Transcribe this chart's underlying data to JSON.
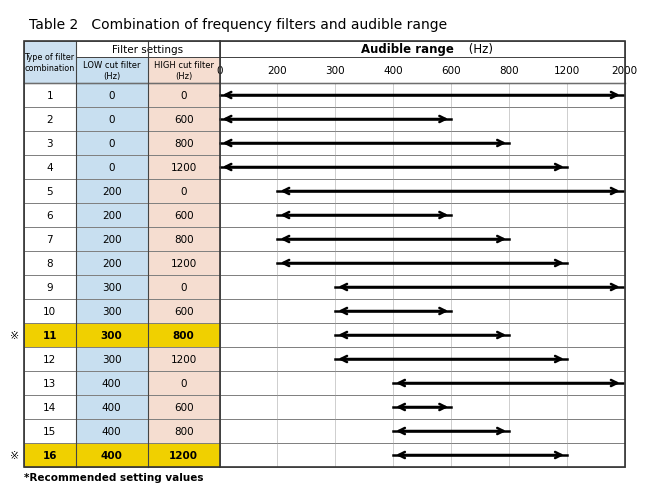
{
  "title": "Table 2   Combination of frequency filters and audible range",
  "rows": [
    {
      "id": 1,
      "low": 0,
      "high": 0,
      "highlighted": false
    },
    {
      "id": 2,
      "low": 0,
      "high": 600,
      "highlighted": false
    },
    {
      "id": 3,
      "low": 0,
      "high": 800,
      "highlighted": false
    },
    {
      "id": 4,
      "low": 0,
      "high": 1200,
      "highlighted": false
    },
    {
      "id": 5,
      "low": 200,
      "high": 0,
      "highlighted": false
    },
    {
      "id": 6,
      "low": 200,
      "high": 600,
      "highlighted": false
    },
    {
      "id": 7,
      "low": 200,
      "high": 800,
      "highlighted": false
    },
    {
      "id": 8,
      "low": 200,
      "high": 1200,
      "highlighted": false
    },
    {
      "id": 9,
      "low": 300,
      "high": 0,
      "highlighted": false
    },
    {
      "id": 10,
      "low": 300,
      "high": 600,
      "highlighted": false
    },
    {
      "id": 11,
      "low": 300,
      "high": 800,
      "highlighted": true
    },
    {
      "id": 12,
      "low": 300,
      "high": 1200,
      "highlighted": false
    },
    {
      "id": 13,
      "low": 400,
      "high": 0,
      "highlighted": false
    },
    {
      "id": 14,
      "low": 400,
      "high": 600,
      "highlighted": false
    },
    {
      "id": 15,
      "low": 400,
      "high": 800,
      "highlighted": false
    },
    {
      "id": 16,
      "low": 400,
      "high": 1200,
      "highlighted": true
    }
  ],
  "freq_ticks": [
    0,
    200,
    300,
    400,
    600,
    800,
    1200,
    2000
  ],
  "freq_labels": [
    "0",
    "200",
    "300",
    "400",
    "600",
    "800",
    "1200",
    "2000"
  ],
  "col_id_label": "Type of filter\ncombination",
  "col_low_label": "LOW cut filter\n(Hz)",
  "col_high_label": "HIGH cut filter\n(Hz)",
  "filter_settings_label": "Filter settings",
  "audible_range_label": "Audible range",
  "audible_range_unit": " (Hz)",
  "recommended_label": "*Recommended setting values",
  "color_header_bg": "#cce0f0",
  "color_low_bg": "#c8dff0",
  "color_high_bg": "#f5ddd0",
  "color_highlight": "#f0d000",
  "color_border": "#666666",
  "color_grid": "#aaaaaa",
  "color_arrow": "#000000",
  "symbol_recommended": "※",
  "title_fontsize": 10,
  "cell_fontsize": 7.5,
  "header_fontsize": 7.5,
  "arrow_lw": 2.0
}
